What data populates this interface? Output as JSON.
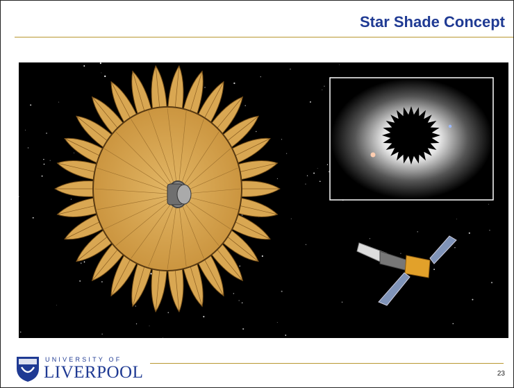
{
  "slide": {
    "title": "Star Shade Concept"
  },
  "footer": {
    "university_of": "UNIVERSITY OF",
    "liverpool": "LIVERPOOL",
    "page_number": "23"
  }
}
